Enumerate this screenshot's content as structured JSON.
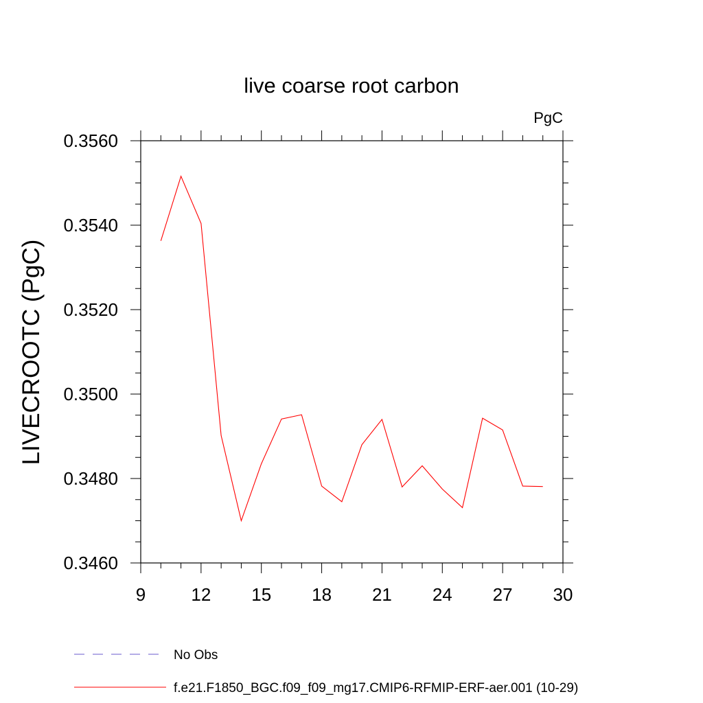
{
  "chart_data": {
    "type": "line",
    "title": "live coarse root carbon",
    "units_label": "PgC",
    "ylabel": "LIVECROOTC  (PgC)",
    "xlabel": "",
    "xlim": [
      9,
      30
    ],
    "ylim": [
      0.346,
      0.356
    ],
    "x_ticks": [
      9,
      12,
      15,
      18,
      21,
      24,
      27,
      30
    ],
    "y_ticks": [
      "0.3460",
      "0.3480",
      "0.3500",
      "0.3520",
      "0.3540",
      "0.3560"
    ],
    "grid": false,
    "legend_placement": "bottom",
    "series": [
      {
        "name": "f.e21.F1850_BGC.f09_f09_mg17.CMIP6-RFMIP-ERF-aer.001 (10-29)",
        "color": "#ff0000",
        "style": "solid",
        "x": [
          10,
          11,
          12,
          13,
          14,
          15,
          16,
          17,
          18,
          19,
          20,
          21,
          22,
          23,
          24,
          25,
          26,
          27,
          28,
          29
        ],
        "y": [
          0.35363,
          0.35516,
          0.35404,
          0.34902,
          0.347,
          0.34835,
          0.34941,
          0.34951,
          0.34782,
          0.34745,
          0.3488,
          0.3494,
          0.3478,
          0.3483,
          0.34775,
          0.34731,
          0.34943,
          0.34915,
          0.34782,
          0.34781
        ]
      }
    ],
    "legend": [
      {
        "label": "No Obs",
        "color": "#6a5acd",
        "style": "dashed"
      },
      {
        "label": "f.e21.F1850_BGC.f09_f09_mg17.CMIP6-RFMIP-ERF-aer.001 (10-29)",
        "color": "#ff0000",
        "style": "solid"
      }
    ]
  }
}
